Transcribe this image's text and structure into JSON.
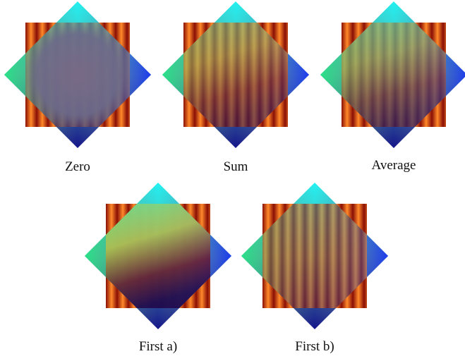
{
  "panels": [
    {
      "caption": "Zero"
    },
    {
      "caption": "Sum"
    },
    {
      "caption": "Average"
    },
    {
      "caption": "First a)"
    },
    {
      "caption": "First b)"
    }
  ]
}
